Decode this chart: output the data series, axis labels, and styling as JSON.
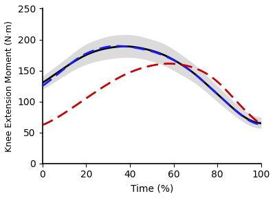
{
  "title": "",
  "xlabel": "Time (%)",
  "ylabel": "Knee Extension Moment (N·m)",
  "xlim": [
    0,
    100
  ],
  "ylim": [
    0,
    250
  ],
  "xticks": [
    0,
    20,
    40,
    60,
    80,
    100
  ],
  "yticks": [
    0,
    50,
    100,
    150,
    200,
    250
  ],
  "black_line": [
    130,
    145,
    160,
    173,
    182,
    187,
    189,
    187,
    182,
    174,
    162,
    147,
    128,
    108,
    88,
    72,
    65
  ],
  "black_upper": [
    140,
    157,
    174,
    190,
    200,
    206,
    208,
    206,
    200,
    192,
    178,
    162,
    142,
    121,
    100,
    82,
    75
  ],
  "black_lower": [
    120,
    133,
    147,
    158,
    165,
    169,
    171,
    170,
    165,
    157,
    145,
    132,
    115,
    96,
    78,
    63,
    57
  ],
  "blue_line": [
    125,
    142,
    160,
    175,
    184,
    189,
    189,
    186,
    181,
    173,
    162,
    147,
    128,
    108,
    88,
    71,
    63
  ],
  "red_line": [
    62,
    73,
    87,
    102,
    117,
    131,
    143,
    152,
    158,
    161,
    160,
    155,
    145,
    128,
    105,
    82,
    63
  ],
  "time_points": [
    0,
    6.25,
    12.5,
    18.75,
    25,
    31.25,
    37.5,
    43.75,
    50,
    56.25,
    62.5,
    68.75,
    75,
    81.25,
    87.5,
    93.75,
    100
  ],
  "black_color": "#000000",
  "blue_color": "#1a1aff",
  "red_color": "#cc0000",
  "shade_color": "#b0b0b0",
  "shade_alpha": 0.45,
  "bg_color": "#ffffff",
  "linewidth": 2.0,
  "dash_linewidth": 2.0,
  "figsize": [
    4.0,
    2.88
  ],
  "dpi": 100
}
